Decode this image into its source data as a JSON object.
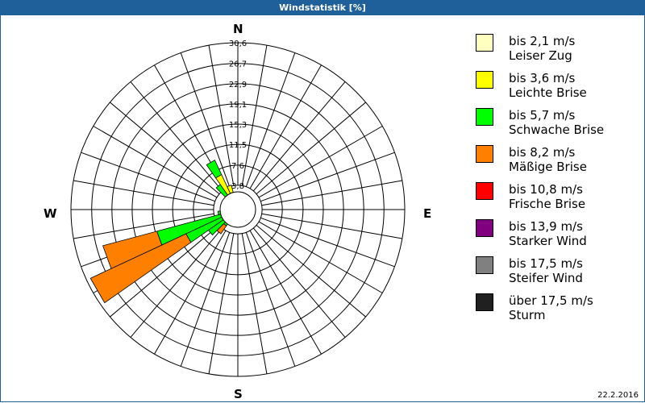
{
  "title": "Windstatistik [%]",
  "date": "22.2.2016",
  "directions": {
    "n": "N",
    "e": "E",
    "s": "S",
    "w": "W"
  },
  "ring_labels": [
    "3,8",
    "7,6",
    "11,5",
    "15,3",
    "19,1",
    "22,9",
    "26,7",
    "30,6"
  ],
  "legend": [
    {
      "line1": "bis 2,1 m/s",
      "line2": "Leiser Zug",
      "color": "#ffffc0"
    },
    {
      "line1": "bis 3,6 m/s",
      "line2": "Leichte Brise",
      "color": "#ffff00"
    },
    {
      "line1": "bis 5,7 m/s",
      "line2": "Schwache Brise",
      "color": "#00ff00"
    },
    {
      "line1": "bis 8,2 m/s",
      "line2": "Mäßige Brise",
      "color": "#ff8000"
    },
    {
      "line1": "bis 10,8 m/s",
      "line2": "Frische Brise",
      "color": "#ff0000"
    },
    {
      "line1": "bis 13,9 m/s",
      "line2": "Starker Wind",
      "color": "#800080"
    },
    {
      "line1": "bis 17,5 m/s",
      "line2": "Steifer Wind",
      "color": "#808080"
    },
    {
      "line1": "über 17,5 m/s",
      "line2": "Sturm",
      "color": "#202020"
    }
  ],
  "chart_data": {
    "type": "polar-bar",
    "title": "Windstatistik [%]",
    "sector_width_deg": 10,
    "radial_max": 30.6,
    "radial_ticks": [
      3.8,
      7.6,
      11.5,
      15.3,
      19.1,
      22.9,
      26.7,
      30.6
    ],
    "series_names": [
      "bis 2,1 m/s",
      "bis 3,6 m/s",
      "bis 5,7 m/s",
      "bis 8,2 m/s",
      "bis 10,8 m/s",
      "bis 13,9 m/s",
      "bis 17,5 m/s",
      "über 17,5 m/s"
    ],
    "sectors": [
      {
        "dir": 200,
        "cum": [
          0.3,
          0.6,
          1.0,
          1.3
        ]
      },
      {
        "dir": 210,
        "cum": [
          0.3,
          0.6,
          1.5,
          2.0
        ]
      },
      {
        "dir": 220,
        "cum": [
          0.3,
          0.8,
          3.0,
          4.8
        ]
      },
      {
        "dir": 230,
        "cum": [
          0.5,
          1.5,
          6.0,
          6.0
        ]
      },
      {
        "dir": 240,
        "cum": [
          0.6,
          2.0,
          10.0,
          29.8
        ]
      },
      {
        "dir": 250,
        "cum": [
          0.6,
          2.5,
          15.0,
          25.5
        ]
      },
      {
        "dir": 260,
        "cum": [
          0.5,
          1.5,
          3.0,
          3.0
        ]
      },
      {
        "dir": 270,
        "cum": [
          0.3,
          1.0,
          1.5,
          1.5
        ]
      },
      {
        "dir": 280,
        "cum": [
          0.3,
          0.8,
          1.0,
          1.0
        ]
      },
      {
        "dir": 300,
        "cum": [
          0.3,
          0.8,
          1.0,
          1.0
        ]
      },
      {
        "dir": 310,
        "cum": [
          0.3,
          1.0,
          1.5,
          1.5
        ]
      },
      {
        "dir": 320,
        "cum": [
          0.5,
          2.0,
          5.0,
          5.0
        ]
      },
      {
        "dir": 330,
        "cum": [
          0.8,
          6.5,
          9.5,
          9.5
        ]
      },
      {
        "dir": 340,
        "cum": [
          0.8,
          4.0,
          4.0,
          4.0
        ]
      },
      {
        "dir": 350,
        "cum": [
          0.3,
          1.0,
          1.0,
          1.0
        ]
      }
    ]
  }
}
